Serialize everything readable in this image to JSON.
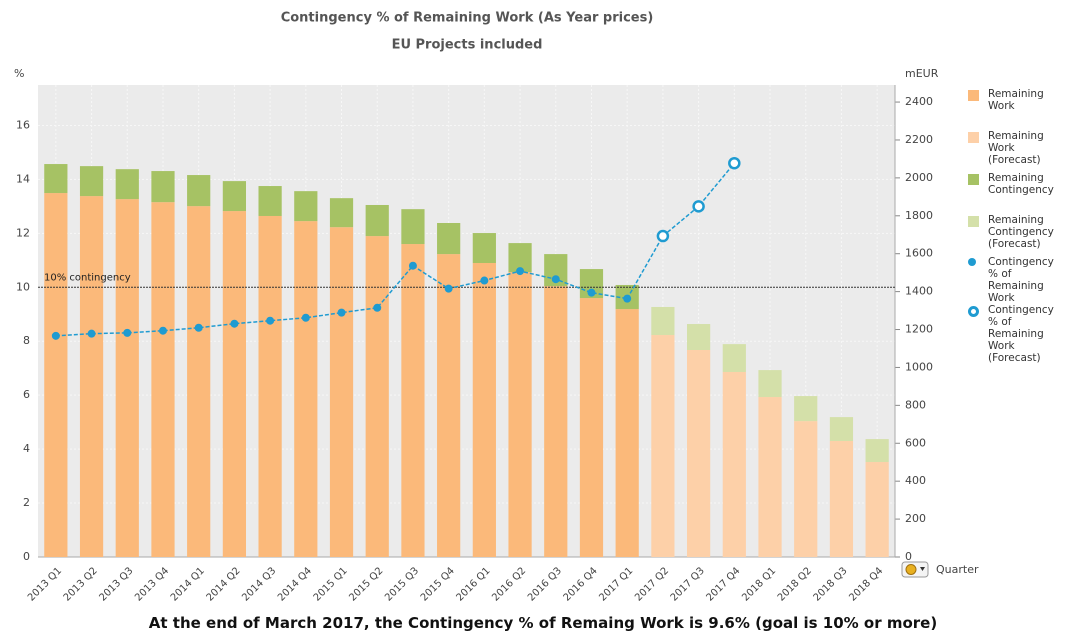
{
  "chart_data": {
    "type": "bar-line",
    "title": "Contingency % of Remaining Work (As Year prices)",
    "subtitle": "EU Projects included",
    "ylabel": "%",
    "y2label": "mEUR",
    "xlabel": "Quarter",
    "caption": "At the end of March 2017, the Contingency % of Remaing Work is 9.6% (goal is 10% or more)",
    "categories": [
      "2013 Q1",
      "2013 Q2",
      "2013 Q3",
      "2013 Q4",
      "2014 Q1",
      "2014 Q2",
      "2014 Q3",
      "2014 Q4",
      "2015 Q1",
      "2015 Q2",
      "2015 Q3",
      "2015 Q4",
      "2016 Q1",
      "2016 Q2",
      "2016 Q3",
      "2016 Q4",
      "2017 Q1",
      "2017 Q2",
      "2017 Q3",
      "2017 Q4",
      "2018 Q1",
      "2018 Q2",
      "2018 Q3",
      "2018 Q4"
    ],
    "series": [
      {
        "name": "Remaining Work",
        "type": "bar",
        "axis": "y2",
        "color": "#fbb97a",
        "values": [
          1920,
          1904,
          1888,
          1872,
          1851,
          1825,
          1799,
          1772,
          1740,
          1693,
          1651,
          1598,
          1551,
          1503,
          1429,
          1366,
          1308,
          null,
          null,
          null,
          null,
          null,
          null,
          null
        ]
      },
      {
        "name": "Remaining Work (Forecast)",
        "type": "bar",
        "axis": "y2",
        "color": "#fdd0a8",
        "values": [
          null,
          null,
          null,
          null,
          null,
          null,
          null,
          null,
          null,
          null,
          null,
          null,
          null,
          null,
          null,
          null,
          null,
          1171,
          1092,
          976,
          844,
          717,
          612,
          501
        ]
      },
      {
        "name": "Remaining Contingency",
        "type": "bar",
        "axis": "y2",
        "color": "#a6c264",
        "values": [
          153,
          158,
          158,
          164,
          164,
          158,
          158,
          158,
          153,
          164,
          184,
          164,
          158,
          153,
          169,
          153,
          127,
          null,
          null,
          null,
          null,
          null,
          null,
          null
        ]
      },
      {
        "name": "Remaining Contingency (Forecast)",
        "type": "bar",
        "axis": "y2",
        "color": "#d4e0a9",
        "values": [
          null,
          null,
          null,
          null,
          null,
          null,
          null,
          null,
          null,
          null,
          null,
          null,
          null,
          null,
          null,
          null,
          null,
          148,
          137,
          147,
          142,
          132,
          126,
          121
        ]
      },
      {
        "name": "Contingency % of Remaining Work",
        "type": "line",
        "axis": "y",
        "color": "#1f9bd1",
        "marker": "filled",
        "values": [
          8.2,
          8.28,
          8.31,
          8.39,
          8.5,
          8.65,
          8.76,
          8.87,
          9.06,
          9.24,
          10.8,
          9.95,
          10.25,
          10.6,
          10.3,
          9.8,
          9.58,
          null,
          null,
          null,
          null,
          null,
          null,
          null
        ]
      },
      {
        "name": "Contingency % of Remaining Work (Forecast)",
        "type": "line",
        "axis": "y",
        "color": "#1f9bd1",
        "marker": "hollow",
        "values": [
          null,
          null,
          null,
          null,
          null,
          null,
          null,
          null,
          null,
          null,
          null,
          null,
          null,
          null,
          null,
          null,
          null,
          11.9,
          13.0,
          14.6,
          null,
          null,
          null,
          null
        ]
      }
    ],
    "reference": {
      "value": 10,
      "label": "10% contingency"
    },
    "ylim": [
      0,
      17.5
    ],
    "yticks": [
      0,
      2,
      4,
      6,
      8,
      10,
      12,
      14,
      16
    ],
    "y2lim": [
      0,
      2490
    ],
    "y2ticks": [
      0,
      200,
      400,
      600,
      800,
      1000,
      1200,
      1400,
      1600,
      1800,
      2000,
      2200,
      2400
    ],
    "grid": true
  }
}
